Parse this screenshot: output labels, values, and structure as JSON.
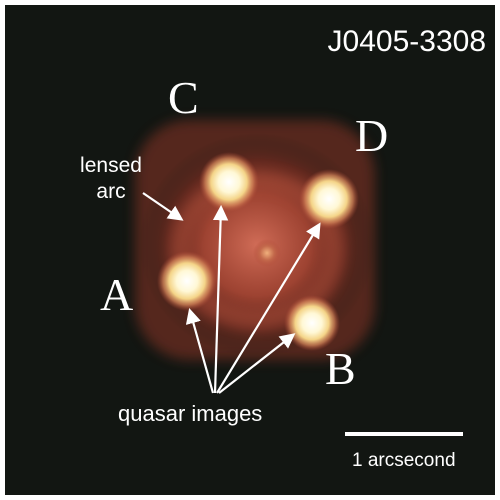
{
  "object_id": "J0405-3308",
  "image_labels": {
    "a": "A",
    "b": "B",
    "c": "C",
    "d": "D"
  },
  "annotations": {
    "lensed_arc_line1": "lensed",
    "lensed_arc_line2": "arc",
    "quasar_images": "quasar images"
  },
  "scale_bar_label": "1 arcsecond",
  "colors": {
    "background": "#121612",
    "lens_glow": "#c0503c",
    "quasar_core": "#fffbe0",
    "annotation": "#ffffff"
  }
}
